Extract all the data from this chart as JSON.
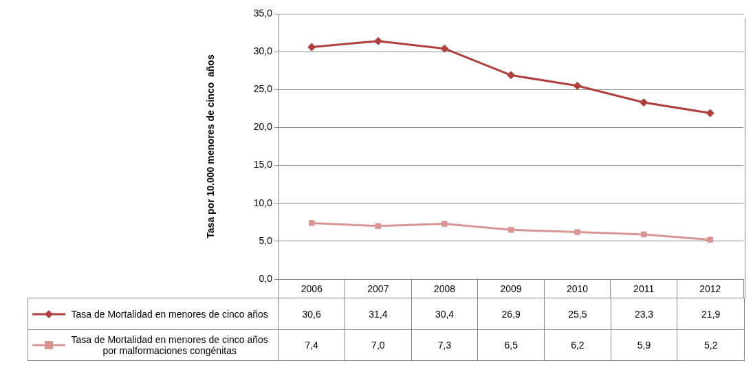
{
  "chart_data": {
    "type": "line",
    "ylabel": "Tasa por 10.000 menores de cinco  años",
    "categories": [
      "2006",
      "2007",
      "2008",
      "2009",
      "2010",
      "2011",
      "2012"
    ],
    "series": [
      {
        "name": "Tasa de Mortalidad  en menores de cinco años",
        "color": "#b0403e",
        "marker": "diamond",
        "values": [
          30.6,
          31.4,
          30.4,
          26.9,
          25.5,
          23.3,
          21.9
        ],
        "value_labels": [
          "30,6",
          "31,4",
          "30,4",
          "26,9",
          "25,5",
          "23,3",
          "21,9"
        ]
      },
      {
        "name": "Tasa de Mortalidad  en menores de cinco años por malformaciones  congénitas",
        "color": "#d99594",
        "marker": "square",
        "values": [
          7.4,
          7.0,
          7.3,
          6.5,
          6.2,
          5.9,
          5.2
        ],
        "value_labels": [
          "7,4",
          "7,0",
          "7,3",
          "6,5",
          "6,2",
          "5,9",
          "5,2"
        ]
      }
    ],
    "ylim": [
      0,
      35
    ],
    "yticks": [
      {
        "value": 0,
        "label": "0,0"
      },
      {
        "value": 5,
        "label": "5,0"
      },
      {
        "value": 10,
        "label": "10,0"
      },
      {
        "value": 15,
        "label": "15,0"
      },
      {
        "value": 20,
        "label": "20,0"
      },
      {
        "value": 25,
        "label": "25,0"
      },
      {
        "value": 30,
        "label": "30,0"
      },
      {
        "value": 35,
        "label": "35,0"
      }
    ],
    "grid": "y",
    "legend": "bottom",
    "line_style": "solid"
  }
}
